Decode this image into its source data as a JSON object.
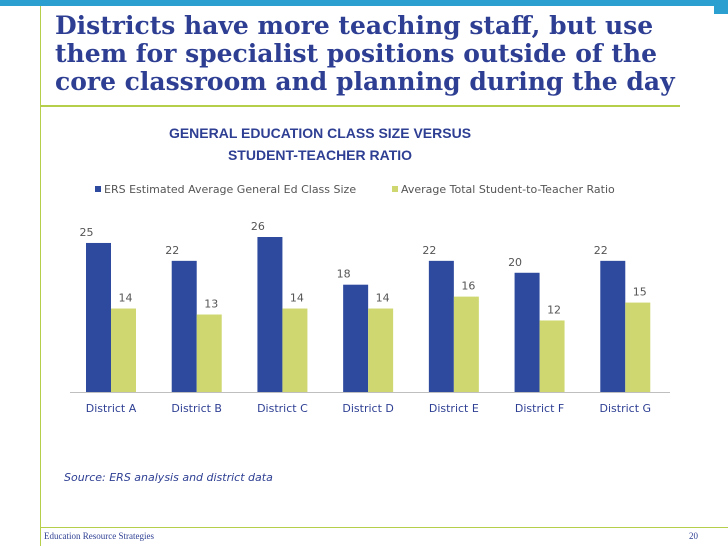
{
  "slide": {
    "title_lines": [
      "Districts have more teaching staff, but use",
      "them for specialist positions outside of the",
      "core classroom and planning during the day"
    ],
    "source": "Source: ERS analysis and district data",
    "footer_org": "Education Resource Strategies",
    "page_number": "20"
  },
  "colors": {
    "series1": "#2e4a9e",
    "series2": "#cfd870",
    "accent": "#2a9fd0",
    "rule": "#b5cf4a",
    "text": "#2e3f93"
  },
  "chart_data": {
    "type": "bar",
    "title_lines": [
      "GENERAL EDUCATION CLASS SIZE VERSUS",
      "STUDENT-TEACHER RATIO"
    ],
    "categories": [
      "District A",
      "District B",
      "District C",
      "District D",
      "District E",
      "District F",
      "District G"
    ],
    "series": [
      {
        "name": "ERS Estimated Average General Ed Class Size",
        "values": [
          25,
          22,
          26,
          18,
          22,
          20,
          22
        ]
      },
      {
        "name": "Average Total Student-to-Teacher Ratio",
        "values": [
          14,
          13,
          14,
          14,
          16,
          12,
          15
        ]
      }
    ],
    "ylim": [
      0,
      26
    ],
    "grid": false,
    "legend_position": "top"
  }
}
